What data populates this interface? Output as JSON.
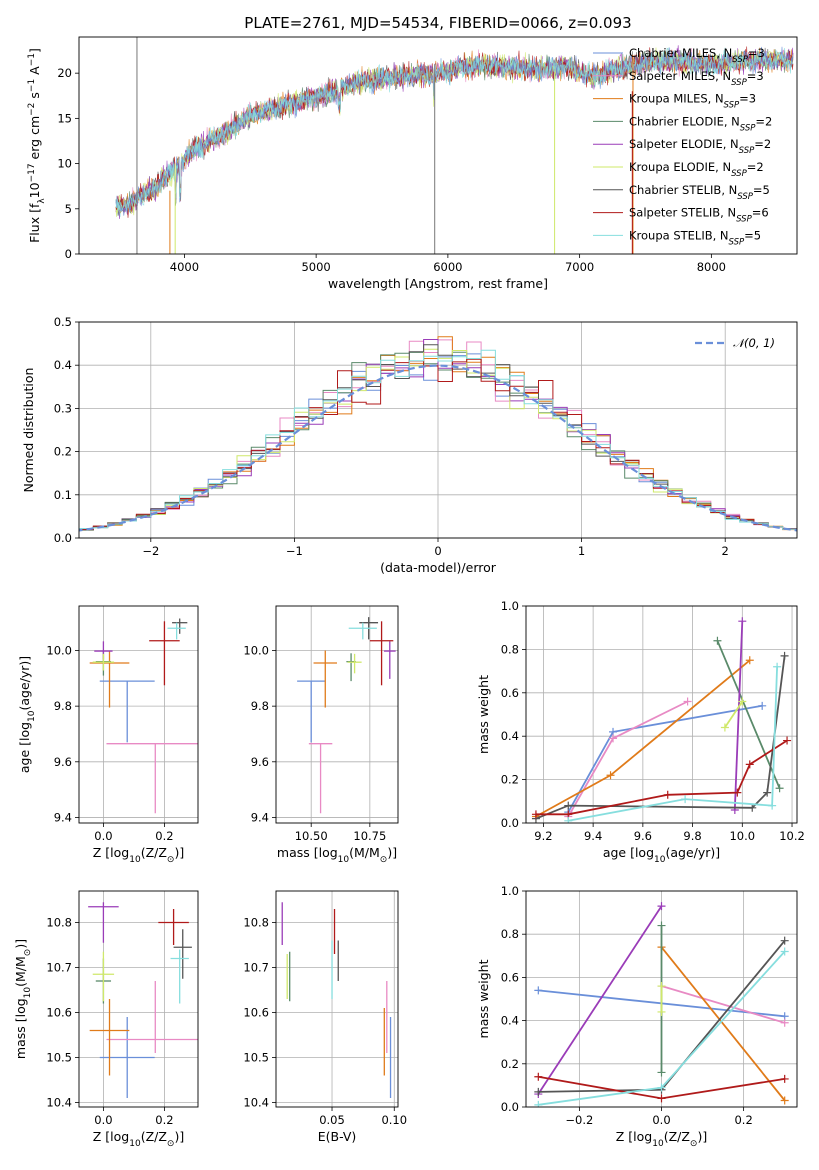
{
  "title": "PLATE=2761, MJD=54534, FIBERID=0066, z=0.093",
  "models": [
    {
      "name": "Chabrier MILES, N",
      "sub": "SSP",
      "eq": "=3",
      "color": "#6a8fd9"
    },
    {
      "name": "Salpeter MILES, N",
      "sub": "SSP",
      "eq": "=3",
      "color": "#e88ac4"
    },
    {
      "name": "Kroupa MILES, N",
      "sub": "SSP",
      "eq": "=3",
      "color": "#e07b1a"
    },
    {
      "name": "Chabrier ELODIE, N",
      "sub": "SSP",
      "eq": "=2",
      "color": "#5a8a6a"
    },
    {
      "name": "Salpeter ELODIE, N",
      "sub": "SSP",
      "eq": "=2",
      "color": "#9a3cb8"
    },
    {
      "name": "Kroupa ELODIE, N",
      "sub": "SSP",
      "eq": "=2",
      "color": "#cfe86a"
    },
    {
      "name": "Chabrier STELIB, N",
      "sub": "SSP",
      "eq": "=5",
      "color": "#555555"
    },
    {
      "name": "Salpeter STELIB, N",
      "sub": "SSP",
      "eq": "=6",
      "color": "#b01a1a"
    },
    {
      "name": "Kroupa STELIB, N",
      "sub": "SSP",
      "eq": "=5",
      "color": "#86dede"
    }
  ],
  "chart_data": [
    {
      "id": "spectrum",
      "type": "line",
      "title": "PLATE=2761, MJD=54534, FIBERID=0066, z=0.093",
      "xlabel": "wavelength [Angstrom, rest frame]",
      "ylabel": "Flux [f",
      "ylabel_sub": "λ",
      "ylabel_rest": "10",
      "ylabel_sup1": "−17",
      "ylabel_unit": " erg cm",
      "ylabel_sup2": "−2",
      "ylabel_unit2": " s",
      "ylabel_sup3": "−1",
      "ylabel_unit3": " A",
      "ylabel_sup4": "−1",
      "ylabel_end": "]",
      "xlim": [
        3200,
        8650
      ],
      "ylim": [
        0,
        24
      ],
      "xticks": [
        4000,
        5000,
        6000,
        7000,
        8000
      ],
      "yticks": [
        0,
        5,
        10,
        15,
        20
      ],
      "continuum": [
        [
          3480,
          5.2
        ],
        [
          3600,
          5.6
        ],
        [
          3700,
          6.8
        ],
        [
          3800,
          7.5
        ],
        [
          3850,
          8.6
        ],
        [
          3950,
          9.6
        ],
        [
          4050,
          11.3
        ],
        [
          4200,
          12.6
        ],
        [
          4350,
          13.8
        ],
        [
          4500,
          15.4
        ],
        [
          4700,
          16.2
        ],
        [
          4900,
          17.0
        ],
        [
          5100,
          17.8
        ],
        [
          5300,
          19.0
        ],
        [
          5500,
          19.4
        ],
        [
          5700,
          19.8
        ],
        [
          5900,
          19.8
        ],
        [
          6100,
          20.6
        ],
        [
          6300,
          20.8
        ],
        [
          6500,
          20.6
        ],
        [
          6700,
          20.4
        ],
        [
          6900,
          20.8
        ],
        [
          7100,
          19.6
        ],
        [
          7300,
          20.6
        ],
        [
          7500,
          21.2
        ],
        [
          7700,
          21.4
        ],
        [
          8000,
          21.0
        ],
        [
          8300,
          21.4
        ],
        [
          8600,
          21.5
        ]
      ],
      "legend": "upper right"
    },
    {
      "id": "residuals",
      "type": "histogram",
      "xlabel": "(data-model)/error",
      "ylabel": "Normed distribution",
      "xlim": [
        -2.5,
        2.5
      ],
      "ylim": [
        0,
        0.5
      ],
      "xticks": [
        -2,
        -1,
        0,
        1,
        2
      ],
      "yticks": [
        0,
        0.1,
        0.2,
        0.3,
        0.4,
        0.5
      ],
      "bin_width": 0.1,
      "grid": true,
      "reference": {
        "label": "𝒩(0, 1)",
        "mean": 0,
        "sigma": 1,
        "color": "#6a8fd9"
      },
      "legend": "upper right"
    },
    {
      "id": "age_vs_Z",
      "type": "errorbar",
      "xlabel": "Z [log",
      "xlabel_sub": "10",
      "xlabel_rest": "(Z/Z",
      "xlabel_sub2": "⊙",
      "xlabel_end": ")]",
      "ylabel": "age  [log",
      "ylabel_sub": "10",
      "ylabel_rest": "(age/yr)]",
      "xlim": [
        -0.08,
        0.31
      ],
      "ylim": [
        9.38,
        10.16
      ],
      "xticks": [
        0.0,
        0.2
      ],
      "yticks": [
        9.4,
        9.6,
        9.8,
        10.0
      ],
      "grid": true,
      "points": [
        {
          "x": 0.078,
          "y": 9.89,
          "xerr": 0.09,
          "yerr_lo": 0.22,
          "yerr_hi": 0.0
        },
        {
          "x": 0.17,
          "y": 9.665,
          "xerr": 0.16,
          "yerr_lo": 0.25,
          "yerr_hi": 0.0
        },
        {
          "x": 0.02,
          "y": 9.955,
          "xerr": 0.065,
          "yerr_lo": 0.16,
          "yerr_hi": 0.045
        },
        {
          "x": 0.0,
          "y": 9.96,
          "xerr": 0.025,
          "yerr_lo": 0.05,
          "yerr_hi": 0.04
        },
        {
          "x": 0.0,
          "y": 9.998,
          "xerr": 0.03,
          "yerr_lo": 0.03,
          "yerr_hi": 0.035
        },
        {
          "x": 0.0,
          "y": 9.958,
          "xerr": 0.035,
          "yerr_lo": 0.03,
          "yerr_hi": 0.03
        },
        {
          "x": 0.25,
          "y": 10.1,
          "xerr": 0.025,
          "yerr_lo": 0.04,
          "yerr_hi": 0.015
        },
        {
          "x": 0.2,
          "y": 10.035,
          "xerr": 0.05,
          "yerr_lo": 0.16,
          "yerr_hi": 0.07
        },
        {
          "x": 0.24,
          "y": 10.08,
          "xerr": 0.03,
          "yerr_lo": 0.04,
          "yerr_hi": 0.02
        }
      ]
    },
    {
      "id": "age_vs_mass",
      "type": "errorbar",
      "xlabel": "mass [log",
      "xlabel_sub": "10",
      "xlabel_rest": "(M/M",
      "xlabel_sub2": "⊙",
      "xlabel_end": ")]",
      "xlim": [
        10.35,
        10.87
      ],
      "ylim": [
        9.38,
        10.16
      ],
      "xticks": [
        10.5,
        10.75
      ],
      "yticks": [
        9.4,
        9.6,
        9.8,
        10.0
      ],
      "grid": true,
      "points": [
        {
          "x": 10.5,
          "y": 9.89,
          "xerr": 0.06,
          "yerr_lo": 0.22,
          "yerr_hi": 0.0
        },
        {
          "x": 10.54,
          "y": 9.665,
          "xerr": 0.05,
          "yerr_lo": 0.25,
          "yerr_hi": 0.0
        },
        {
          "x": 10.56,
          "y": 9.955,
          "xerr": 0.05,
          "yerr_lo": 0.16,
          "yerr_hi": 0.045
        },
        {
          "x": 10.67,
          "y": 9.96,
          "xerr": 0.02,
          "yerr_lo": 0.07,
          "yerr_hi": 0.03
        },
        {
          "x": 10.835,
          "y": 9.998,
          "xerr": 0.025,
          "yerr_lo": 0.1,
          "yerr_hi": 0.035
        },
        {
          "x": 10.685,
          "y": 9.958,
          "xerr": 0.03,
          "yerr_lo": 0.04,
          "yerr_hi": 0.03
        },
        {
          "x": 10.745,
          "y": 10.1,
          "xerr": 0.04,
          "yerr_lo": 0.06,
          "yerr_hi": 0.02
        },
        {
          "x": 10.8,
          "y": 10.035,
          "xerr": 0.05,
          "yerr_lo": 0.16,
          "yerr_hi": 0.07
        },
        {
          "x": 10.72,
          "y": 10.08,
          "xerr": 0.06,
          "yerr_lo": 0.04,
          "yerr_hi": 0.02
        }
      ]
    },
    {
      "id": "weight_vs_age",
      "type": "line",
      "xlabel": "age  [log",
      "xlabel_sub": "10",
      "xlabel_rest": "(age/yr)]",
      "ylabel": "mass weight",
      "xlim": [
        9.13,
        10.22
      ],
      "ylim": [
        0,
        1
      ],
      "xticks": [
        9.2,
        9.4,
        9.6,
        9.8,
        10.0,
        10.2
      ],
      "yticks": [
        0,
        0.2,
        0.4,
        0.6,
        0.8,
        1.0
      ],
      "grid": true,
      "series": [
        {
          "x": [
            9.3,
            9.48,
            10.08
          ],
          "y": [
            0.05,
            0.42,
            0.54
          ]
        },
        {
          "x": [
            9.3,
            9.48,
            9.78
          ],
          "y": [
            0.03,
            0.39,
            0.56
          ]
        },
        {
          "x": [
            9.17,
            9.47,
            10.03
          ],
          "y": [
            0.03,
            0.22,
            0.75
          ]
        },
        {
          "x": [
            9.9,
            10.15
          ],
          "y": [
            0.84,
            0.16
          ]
        },
        {
          "x": [
            9.97,
            10.0
          ],
          "y": [
            0.06,
            0.93
          ]
        },
        {
          "x": [
            9.93,
            10.0
          ],
          "y": [
            0.44,
            0.56
          ]
        },
        {
          "x": [
            9.17,
            9.3,
            10.04,
            10.1,
            10.17
          ],
          "y": [
            0.02,
            0.08,
            0.07,
            0.14,
            0.77
          ]
        },
        {
          "x": [
            9.17,
            9.3,
            9.7,
            9.98,
            10.03,
            10.18
          ],
          "y": [
            0.04,
            0.04,
            0.13,
            0.14,
            0.27,
            0.38
          ]
        },
        {
          "x": [
            9.3,
            9.77,
            10.12,
            10.14
          ],
          "y": [
            0.01,
            0.11,
            0.08,
            0.72
          ]
        }
      ]
    },
    {
      "id": "mass_vs_Z",
      "type": "errorbar",
      "xlabel": "Z [log",
      "xlabel_sub": "10",
      "xlabel_rest": "(Z/Z",
      "xlabel_sub2": "⊙",
      "xlabel_end": ")]",
      "ylabel": "mass [log",
      "ylabel_sub": "10",
      "ylabel_rest": "(M/M",
      "ylabel_sub2": "⊙",
      "ylabel_end": ")]",
      "xlim": [
        -0.08,
        0.31
      ],
      "ylim": [
        10.39,
        10.87
      ],
      "xticks": [
        0.0,
        0.2
      ],
      "yticks": [
        10.4,
        10.5,
        10.6,
        10.7,
        10.8
      ],
      "grid": true,
      "points": [
        {
          "x": 0.078,
          "y": 10.5,
          "xerr": 0.09,
          "yerr_lo": 0.09,
          "yerr_hi": 0.09
        },
        {
          "x": 0.17,
          "y": 10.54,
          "xerr": 0.16,
          "yerr_lo": 0.03,
          "yerr_hi": 0.13
        },
        {
          "x": 0.02,
          "y": 10.56,
          "xerr": 0.065,
          "yerr_lo": 0.1,
          "yerr_hi": 0.07
        },
        {
          "x": 0.0,
          "y": 10.67,
          "xerr": 0.025,
          "yerr_lo": 0.05,
          "yerr_hi": 0.05
        },
        {
          "x": 0.0,
          "y": 10.835,
          "xerr": 0.05,
          "yerr_lo": 0.08,
          "yerr_hi": 0.01
        },
        {
          "x": 0.0,
          "y": 10.685,
          "xerr": 0.035,
          "yerr_lo": 0.06,
          "yerr_hi": 0.05
        },
        {
          "x": 0.26,
          "y": 10.745,
          "xerr": 0.03,
          "yerr_lo": 0.07,
          "yerr_hi": 0.04
        },
        {
          "x": 0.23,
          "y": 10.8,
          "xerr": 0.05,
          "yerr_lo": 0.05,
          "yerr_hi": 0.03
        },
        {
          "x": 0.25,
          "y": 10.72,
          "xerr": 0.03,
          "yerr_lo": 0.1,
          "yerr_hi": 0.02
        }
      ]
    },
    {
      "id": "mass_vs_ebv",
      "type": "errorbar",
      "xlabel": "E(B-V)",
      "xlim": [
        0.005,
        0.103
      ],
      "ylim": [
        10.39,
        10.87
      ],
      "xticks": [
        0.05,
        0.1
      ],
      "yticks": [
        10.4,
        10.5,
        10.6,
        10.7,
        10.8
      ],
      "grid": true,
      "points": [
        {
          "x": 0.097,
          "y": 10.5,
          "xerr": 0,
          "yerr_lo": 0.09,
          "yerr_hi": 0.09
        },
        {
          "x": 0.094,
          "y": 10.54,
          "xerr": 0,
          "yerr_lo": 0.03,
          "yerr_hi": 0.13
        },
        {
          "x": 0.092,
          "y": 10.56,
          "xerr": 0,
          "yerr_lo": 0.1,
          "yerr_hi": 0.05
        },
        {
          "x": 0.016,
          "y": 10.685,
          "xerr": 0,
          "yerr_lo": 0.06,
          "yerr_hi": 0.05
        },
        {
          "x": 0.01,
          "y": 10.8,
          "xerr": 0,
          "yerr_lo": 0.05,
          "yerr_hi": 0.045
        },
        {
          "x": 0.014,
          "y": 10.68,
          "xerr": 0,
          "yerr_lo": 0.05,
          "yerr_hi": 0.05
        },
        {
          "x": 0.055,
          "y": 10.72,
          "xerr": 0,
          "yerr_lo": 0.05,
          "yerr_hi": 0.04
        },
        {
          "x": 0.052,
          "y": 10.79,
          "xerr": 0,
          "yerr_lo": 0.06,
          "yerr_hi": 0.04
        },
        {
          "x": 0.05,
          "y": 10.7,
          "xerr": 0,
          "yerr_lo": 0.07,
          "yerr_hi": 0.06
        }
      ]
    },
    {
      "id": "weight_vs_Z",
      "type": "line",
      "xlabel": "Z [log",
      "xlabel_sub": "10",
      "xlabel_rest": "(Z/Z",
      "xlabel_sub2": "⊙",
      "xlabel_end": ")]",
      "ylabel": "mass weight",
      "xlim": [
        -0.33,
        0.33
      ],
      "ylim": [
        0,
        1
      ],
      "xticks": [
        -0.2,
        0.0,
        0.2
      ],
      "yticks": [
        0,
        0.2,
        0.4,
        0.6,
        0.8,
        1.0
      ],
      "grid": true,
      "series": [
        {
          "x": [
            -0.3,
            0.3
          ],
          "y": [
            0.54,
            0.42
          ]
        },
        {
          "x": [
            0.0,
            0.3
          ],
          "y": [
            0.56,
            0.39
          ]
        },
        {
          "x": [
            0.0,
            0.3
          ],
          "y": [
            0.74,
            0.03
          ]
        },
        {
          "x": [
            0.0,
            0.0
          ],
          "y": [
            0.84,
            0.16
          ]
        },
        {
          "x": [
            -0.3,
            0.0
          ],
          "y": [
            0.06,
            0.93
          ]
        },
        {
          "x": [
            0.0,
            0.0
          ],
          "y": [
            0.44,
            0.56
          ]
        },
        {
          "x": [
            -0.3,
            0.0,
            0.3
          ],
          "y": [
            0.07,
            0.08,
            0.77
          ]
        },
        {
          "x": [
            -0.3,
            0.0,
            0.3
          ],
          "y": [
            0.14,
            0.04,
            0.13
          ]
        },
        {
          "x": [
            -0.3,
            0.0,
            0.3
          ],
          "y": [
            0.01,
            0.09,
            0.72
          ]
        }
      ]
    }
  ]
}
